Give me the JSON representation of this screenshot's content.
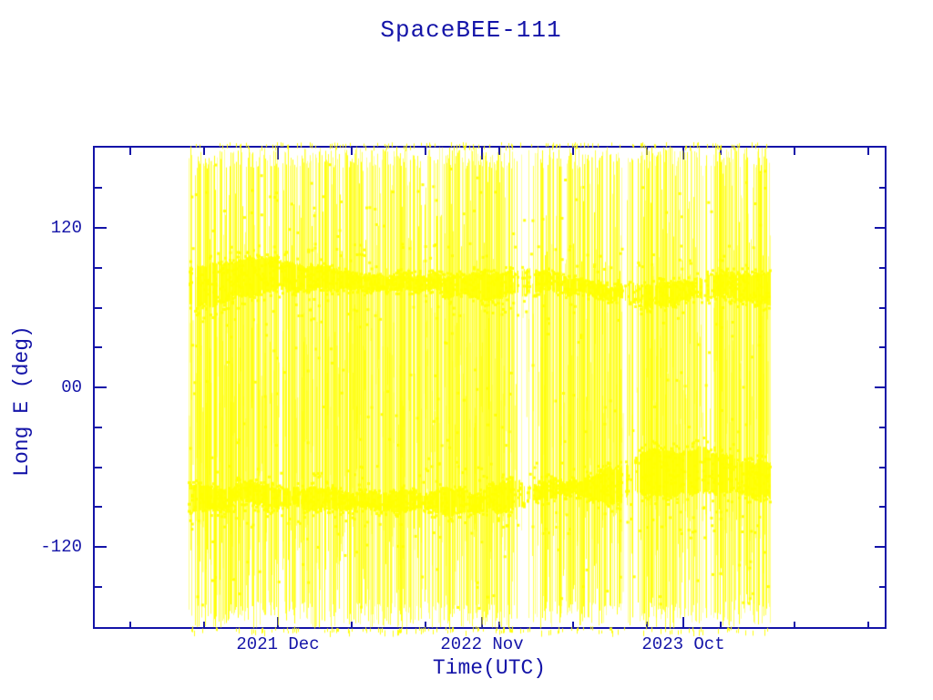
{
  "window": {
    "background": "#ffffff"
  },
  "chart_data": {
    "type": "scatter",
    "title": "SpaceBEE-111",
    "xlabel": "Time(UTC)",
    "ylabel": "Long E (deg)",
    "x_tick_labels": [
      "2021 Dec",
      "2022 Nov",
      "2023 Oct"
    ],
    "y_tick_labels": [
      "120",
      "00",
      "-120"
    ],
    "y_tick_values": [
      120,
      0,
      -120
    ],
    "y_minor_tick_step_deg": 30,
    "ylim": [
      -182,
      182
    ],
    "x_range": {
      "start": "2021 Jul",
      "end": "2024 Feb"
    },
    "point_color": "#ffff00",
    "axis_color": "#1414a8",
    "grid": false,
    "legend": null,
    "pattern": {
      "description": "Satellite East-longitude vs time; longitude wraps at +/-180 deg producing dense vertical streaks; dwell bands where the satellite lingers",
      "dwell_bands_deg": [
        {
          "center": 78,
          "spread": 14
        },
        {
          "center": -83,
          "spread": 11
        }
      ],
      "wrap_lines": true,
      "base_density": 0.93,
      "sparse_time_zones": [
        {
          "from_frac": 0.558,
          "to_frac": 0.603,
          "factor": 0.45
        },
        {
          "from_frac": 0.746,
          "to_frac": 0.777,
          "factor": 0.35
        },
        {
          "from_frac": 0.876,
          "to_frac": 0.901,
          "factor": 0.6
        }
      ],
      "scatter_markers": 900,
      "seed": 77
    }
  }
}
